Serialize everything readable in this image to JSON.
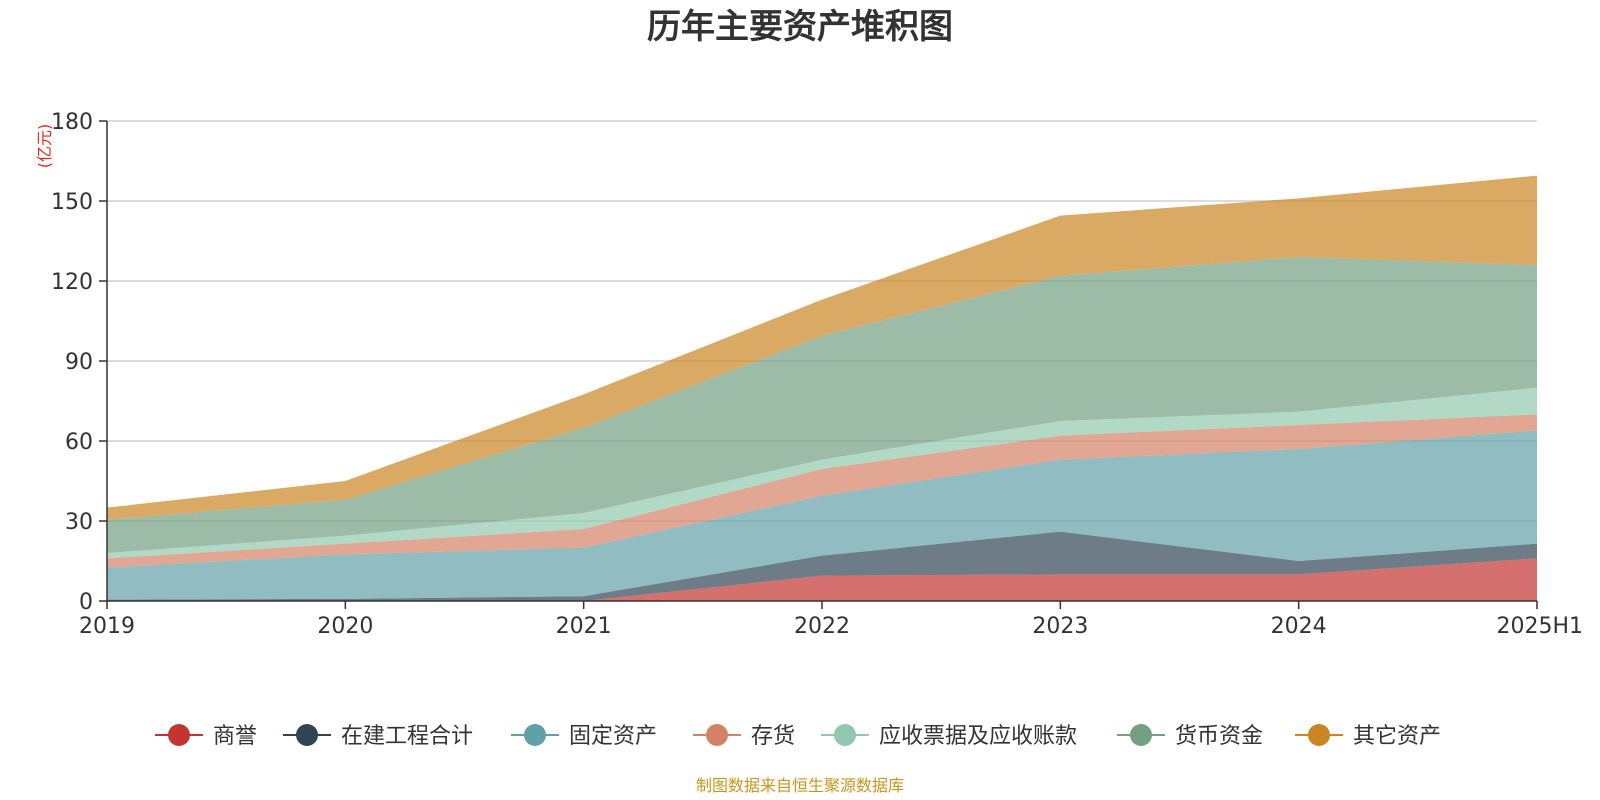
{
  "chart_data": {
    "type": "area",
    "stacked": true,
    "title": "历年主要资产堆积图",
    "unit_label": "(亿元)",
    "source": "制图数据来自恒生聚源数据库",
    "x": [
      "2019",
      "2020",
      "2021",
      "2022",
      "2023",
      "2024",
      "2025H1"
    ],
    "y_ticks": [
      "0",
      "30",
      "60",
      "90",
      "120",
      "150",
      "180"
    ],
    "ylim": [
      0,
      180
    ],
    "grid": true,
    "legend_position": "bottom",
    "series": [
      {
        "name": "商誉",
        "color": "#c23531",
        "values": [
          0,
          0,
          0,
          9.5,
          10,
          10,
          16
        ]
      },
      {
        "name": "在建工程合计",
        "color": "#2f4554",
        "values": [
          0.5,
          0.8,
          1.8,
          7.5,
          16,
          5,
          5.5
        ]
      },
      {
        "name": "固定资产",
        "color": "#61a0a8",
        "values": [
          12,
          16.7,
          18.2,
          22.5,
          27,
          42,
          42.5
        ]
      },
      {
        "name": "存货",
        "color": "#d48265",
        "values": [
          3.5,
          4,
          7,
          10,
          9,
          9,
          6
        ]
      },
      {
        "name": "应收票据及应收账款",
        "color": "#91c7ae",
        "values": [
          2,
          3,
          6,
          3.5,
          5.5,
          5,
          10
        ]
      },
      {
        "name": "货币资金",
        "color": "#749f83",
        "values": [
          12.5,
          13.5,
          32,
          46.5,
          54.5,
          58,
          46
        ]
      },
      {
        "name": "其它资产",
        "color": "#ca8622",
        "values": [
          4.5,
          7,
          12.5,
          13.5,
          22.5,
          22,
          33.5
        ]
      }
    ]
  }
}
